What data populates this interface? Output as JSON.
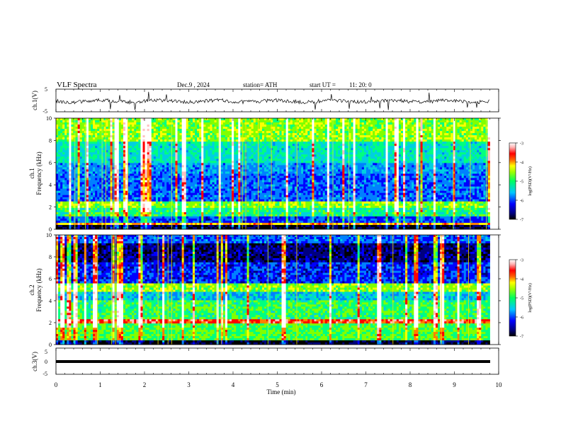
{
  "header": {
    "title": "VLF  Spectra",
    "date": "Dec.9  , 2024",
    "station": "station= ATH",
    "start_ut_label": "start  UT  =",
    "start_ut_value": "11: 20: 0"
  },
  "chart_data": [
    {
      "type": "line",
      "panel": "ch1-waveform",
      "ylabel": "ch.1(V)",
      "ylim": [
        -5,
        5
      ],
      "yticks": [
        "5",
        "-5"
      ],
      "xlim": [
        0,
        10
      ],
      "description_series": "noisy waveform around 0 V with spikes",
      "data_end_min": 9.8
    },
    {
      "type": "heatmap",
      "panel": "ch1-spectrogram",
      "ylabel": "ch.1\nFrequency (kHz)",
      "ylim": [
        0,
        10
      ],
      "yticks": [
        "0",
        "2",
        "4",
        "6",
        "8",
        "10"
      ],
      "xlim": [
        0,
        10
      ],
      "data_end_min": 9.8,
      "colorbar": {
        "label": "log(PSD)(V²/Hz)",
        "range": [
          -7,
          -3
        ],
        "ticks": [
          "-3",
          "-4",
          "-5",
          "-6",
          "-7"
        ]
      }
    },
    {
      "type": "heatmap",
      "panel": "ch2-spectrogram",
      "ylabel": "ch.2\nFrequency (kHz)",
      "ylim": [
        0,
        10
      ],
      "yticks": [
        "0",
        "2",
        "4",
        "6",
        "8",
        "10"
      ],
      "xlim": [
        0,
        10
      ],
      "data_end_min": 9.8,
      "colorbar": {
        "label": "log(PSD)(V²/Hz)",
        "range": [
          -7,
          -3
        ],
        "ticks": [
          "-3",
          "-4",
          "-5",
          "-6",
          "-7"
        ]
      }
    },
    {
      "type": "line",
      "panel": "ch3-waveform",
      "ylabel": "ch.3(V)",
      "ylim": [
        -5,
        5
      ],
      "yticks": [
        "5",
        "0",
        "-5"
      ],
      "xlim": [
        0,
        10
      ],
      "flat_value": 0,
      "data_end_min": 9.8,
      "xlabel": "Time  (min)",
      "xticks": [
        "0",
        "1",
        "2",
        "3",
        "4",
        "5",
        "6",
        "7",
        "8",
        "9",
        "10"
      ]
    }
  ],
  "colors": {
    "scale": [
      "#000000",
      "#00007f",
      "#0000ff",
      "#0080ff",
      "#00d0e0",
      "#00ff80",
      "#80ff00",
      "#ffff00",
      "#ff8000",
      "#ff0000",
      "#ffc0c0",
      "#ffffff"
    ]
  }
}
